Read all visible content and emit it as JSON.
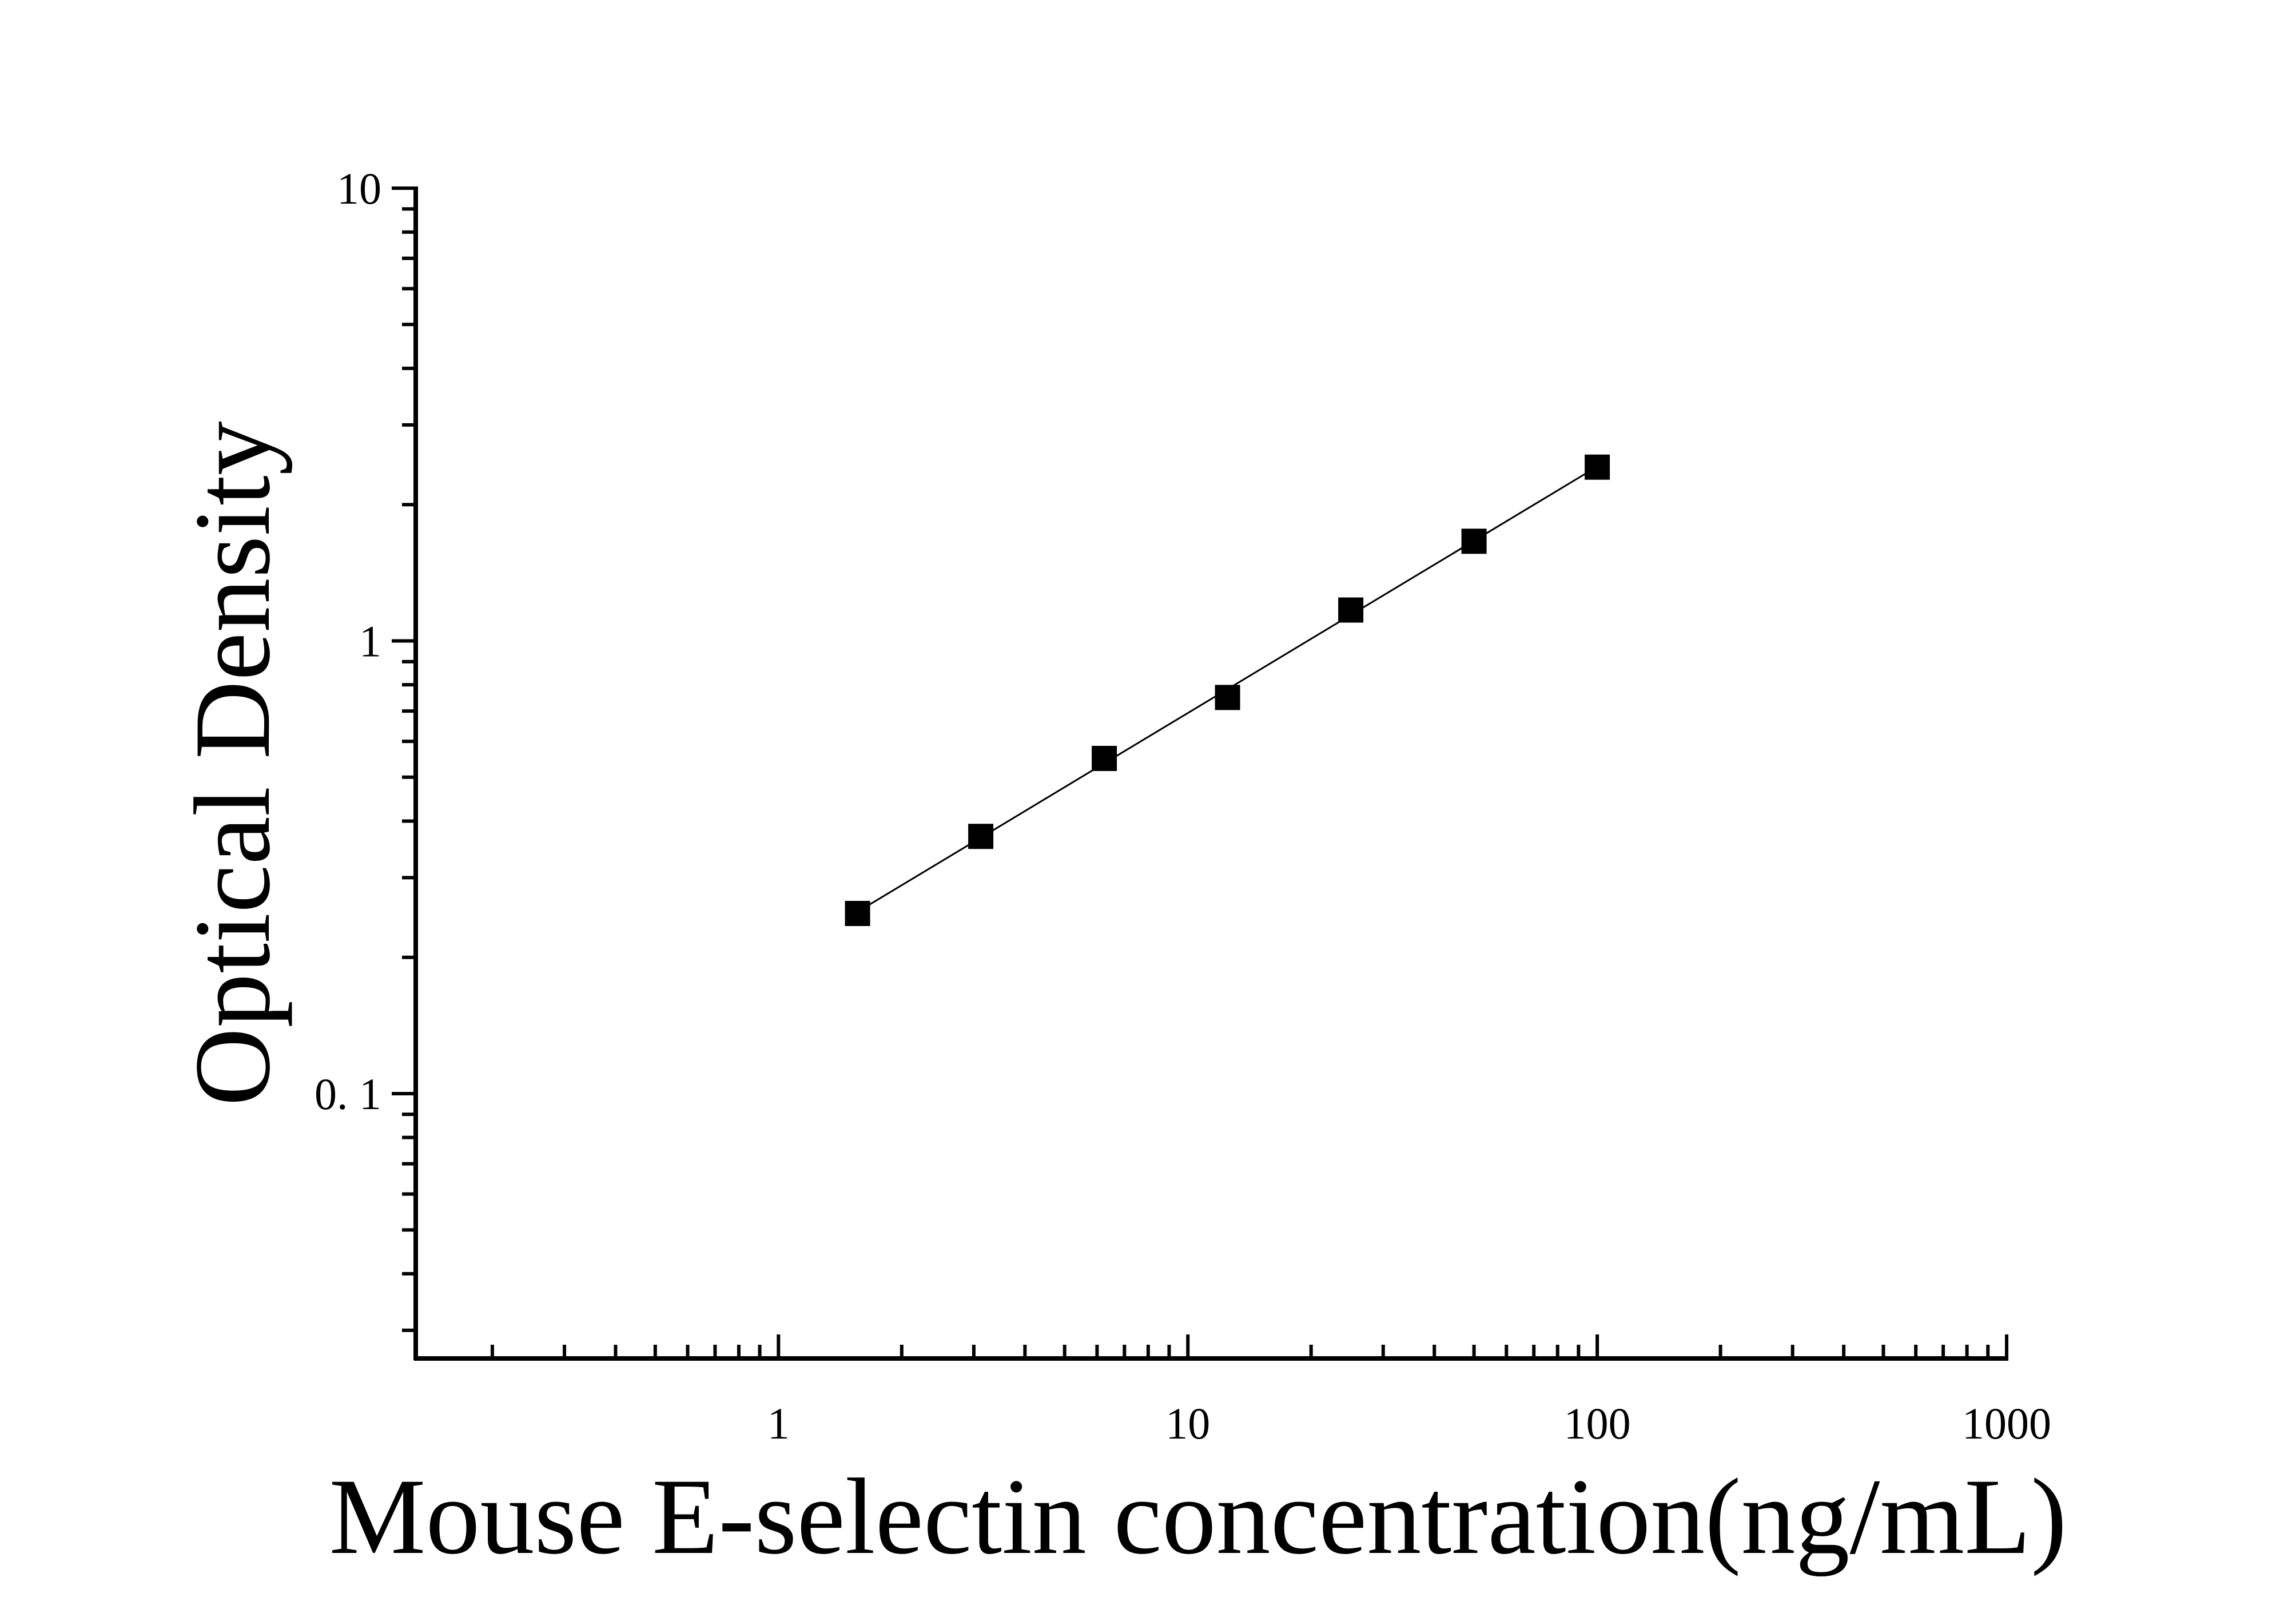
{
  "chart_data": {
    "type": "scatter",
    "title": "",
    "xlabel": "Mouse E-selectin concentration(ng/mL)",
    "ylabel": "Optical Density",
    "x_scale": "log",
    "y_scale": "log",
    "xlim": [
      0.13,
      1000
    ],
    "ylim": [
      0.026,
      10
    ],
    "x_ticks": [
      {
        "value": 1,
        "label": "1"
      },
      {
        "value": 10,
        "label": "10"
      },
      {
        "value": 100,
        "label": "100"
      },
      {
        "value": 1000,
        "label": "1000"
      }
    ],
    "y_ticks": [
      {
        "value": 0.1,
        "label": "0. 1"
      },
      {
        "value": 1,
        "label": "1"
      },
      {
        "value": 10,
        "label": "10"
      }
    ],
    "grid": false,
    "legend": "none",
    "fit_line": true,
    "marker": "square",
    "color": "#000000",
    "series": [
      {
        "x": [
          1.56,
          3.12,
          6.25,
          12.5,
          25,
          50,
          100
        ],
        "y": [
          0.25,
          0.37,
          0.55,
          0.75,
          1.17,
          1.66,
          2.42
        ]
      }
    ]
  }
}
